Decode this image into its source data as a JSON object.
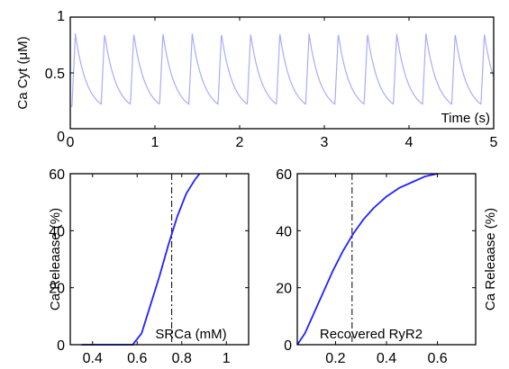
{
  "chart_data": [
    {
      "type": "line",
      "ylabel": "Ca Cyt (μM)",
      "xlabel": "Time (s)",
      "xlim": [
        0,
        5
      ],
      "ylim": [
        0,
        1
      ],
      "xticks": [
        "0",
        "1",
        "2",
        "3",
        "4",
        "5"
      ],
      "yticks": [
        "0",
        "0.5",
        "1"
      ],
      "grid": false,
      "line_color": "#aaaaff",
      "series": [
        {
          "oscillation": {
            "first_peak_time": 0.06,
            "period": 0.345,
            "peak": 0.85,
            "trough": 0.2
          }
        }
      ]
    },
    {
      "type": "line",
      "ylabel": "Ca Releaase (%)",
      "xlabel": "SRCa (mM)",
      "xlim": [
        0.3,
        1.1
      ],
      "ylim": [
        0,
        60
      ],
      "xticks": [
        "0.4",
        "0.6",
        "0.8",
        "1"
      ],
      "yticks": [
        "0",
        "20",
        "40",
        "60"
      ],
      "grid": false,
      "line_color": "#2222ff",
      "marker_x": 0.755,
      "series": [
        {
          "x": [
            0.35,
            0.58,
            0.62,
            0.66,
            0.7,
            0.74,
            0.78,
            0.82,
            0.86,
            0.88
          ],
          "y": [
            0,
            0,
            4,
            14,
            24,
            35,
            45,
            53,
            58,
            60
          ]
        }
      ]
    },
    {
      "type": "line",
      "ylabel": "Ca Releaase (%)",
      "xlabel": "Recovered RyR2",
      "xlim": [
        0.05,
        0.75
      ],
      "ylim": [
        0,
        60
      ],
      "xticks": [
        "0.2",
        "0.4",
        "0.6"
      ],
      "yticks": [
        "0",
        "20",
        "40",
        "60"
      ],
      "grid": false,
      "line_color": "#2222ff",
      "marker_x": 0.265,
      "series": [
        {
          "x": [
            0.05,
            0.08,
            0.11,
            0.15,
            0.19,
            0.23,
            0.27,
            0.31,
            0.35,
            0.4,
            0.45,
            0.5,
            0.55,
            0.6
          ],
          "y": [
            0,
            4,
            10,
            18,
            26,
            33,
            39,
            44,
            48,
            52,
            55,
            57,
            59,
            60
          ]
        }
      ]
    }
  ]
}
